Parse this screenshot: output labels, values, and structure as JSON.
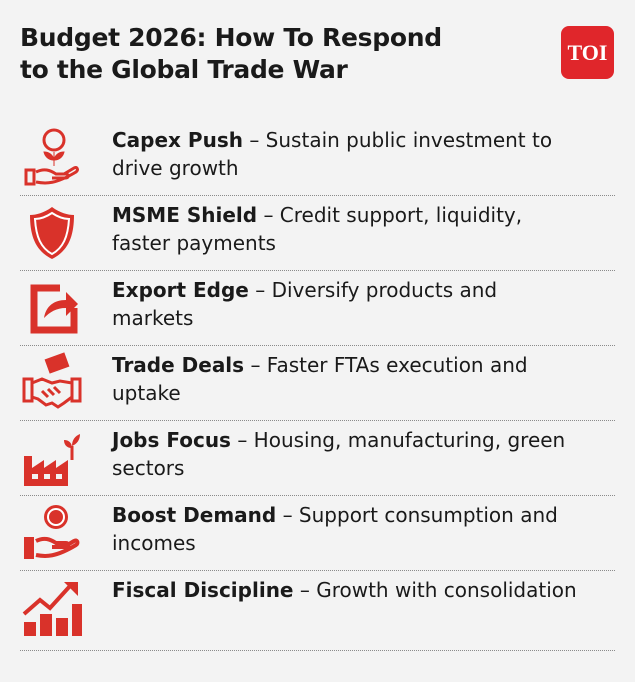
{
  "header": {
    "title_lines": [
      "Budget 2026: How To Respond",
      "to the Global Trade War"
    ],
    "logo": "TOI"
  },
  "items": [
    {
      "heading": "Capex Push",
      "text": "– Sustain public investment to drive growth"
    },
    {
      "heading": "MSME Shield",
      "text": "– Credit support, liquidity, faster payments"
    },
    {
      "heading": "Export Edge",
      "text": "– Diversify products and markets"
    },
    {
      "heading": "Trade Deals",
      "text": "– Faster FTAs execution and uptake"
    },
    {
      "heading": "Jobs Focus",
      "text": "– Housing, manufacturing, green sectors"
    },
    {
      "heading": "Boost Demand",
      "text": "– Support consumption and incomes"
    },
    {
      "heading": "Fiscal Discipline",
      "text": "– Growth with consolidation"
    }
  ]
}
